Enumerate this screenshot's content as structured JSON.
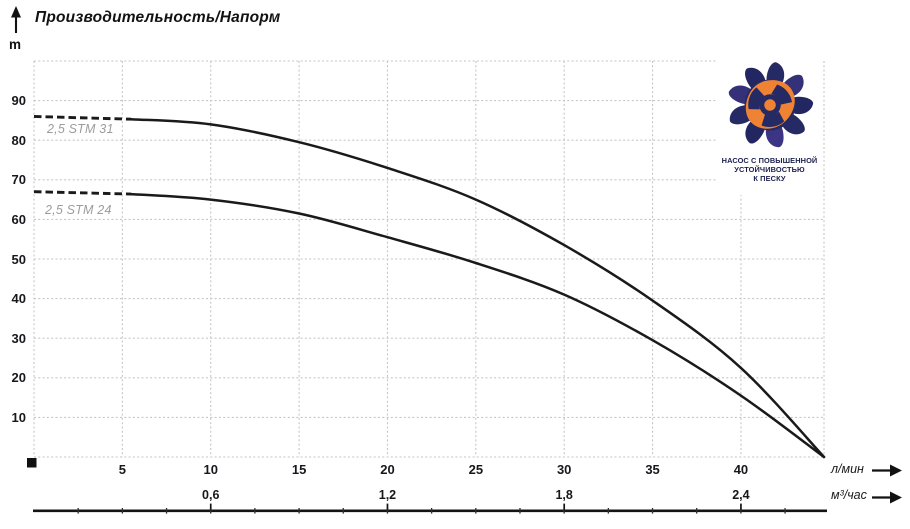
{
  "colors": {
    "curve": "#1a1a1a",
    "grid": "#c6c6c6",
    "axis_text": "#17171c",
    "curve_label_gray": "#9c9c9c",
    "logo_navy": "#262a64",
    "logo_indigo": "#343178",
    "logo_orange": "#ef8333",
    "ruler_black": "#141414"
  },
  "logo": {
    "caption_lines": [
      "НАСОС С ПОВЫШЕННОЙ",
      "УСТОЙЧИВОСТЬЮ",
      "К ПЕСКУ"
    ]
  },
  "chart_data": {
    "type": "line",
    "title": "Производительность/Напорм",
    "ylabel": "m",
    "xlabel_primary": "л/мин",
    "xlabel_secondary": "м³/час",
    "ylim": [
      0,
      100
    ],
    "xlim_lmin": [
      0,
      44.7
    ],
    "grid": "dashed",
    "legend_position": "inline-labels",
    "y_ticks": [
      10,
      20,
      30,
      40,
      50,
      60,
      70,
      80,
      90
    ],
    "x_ticks_lmin": [
      5,
      10,
      15,
      20,
      25,
      30,
      35,
      40
    ],
    "x_ticks_m3h": [
      {
        "at_lmin": 10,
        "label": "0,6"
      },
      {
        "at_lmin": 20,
        "label": "1,2"
      },
      {
        "at_lmin": 30,
        "label": "1,8"
      },
      {
        "at_lmin": 40,
        "label": "2,4"
      }
    ],
    "series": [
      {
        "name": "2,5 STM 31",
        "dashed_until_lmin": 5.5,
        "points_lmin_m": [
          [
            0,
            86
          ],
          [
            5.5,
            85.3
          ],
          [
            10,
            84
          ],
          [
            15,
            79.5
          ],
          [
            20,
            73
          ],
          [
            25,
            65
          ],
          [
            30,
            53.5
          ],
          [
            35,
            39.5
          ],
          [
            40,
            22.5
          ],
          [
            44.7,
            0
          ]
        ]
      },
      {
        "name": "2,5 STM 24",
        "dashed_until_lmin": 5.5,
        "points_lmin_m": [
          [
            0,
            67
          ],
          [
            5.5,
            66.4
          ],
          [
            10,
            65
          ],
          [
            15,
            61.5
          ],
          [
            20,
            55.5
          ],
          [
            25,
            49
          ],
          [
            30,
            41
          ],
          [
            35,
            29.5
          ],
          [
            40,
            15.5
          ],
          [
            44.7,
            0
          ]
        ]
      }
    ]
  }
}
